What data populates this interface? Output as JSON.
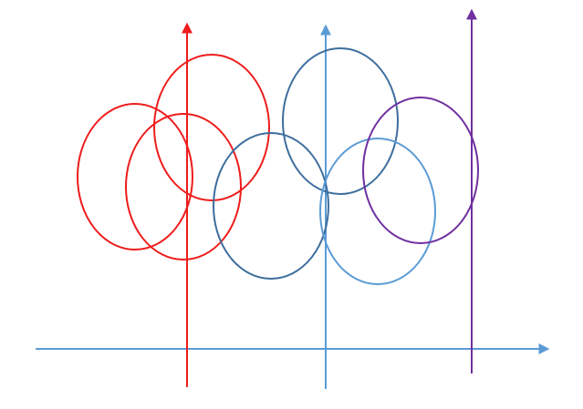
{
  "colors": {
    "red": "#ee1c1c",
    "dark_blue": "#3d6e9d",
    "light_blue": "#5b9bd5",
    "purple": "#7030a0",
    "background": "#ffffff"
  },
  "elements": {
    "horizontal_axis": {
      "color": "#5b9bd5",
      "arrow": "right"
    },
    "vertical_lines": [
      {
        "name": "red-vertical-line",
        "color": "#ee1c1c",
        "arrow": "up"
      },
      {
        "name": "blue-vertical-line",
        "color": "#5b9bd5",
        "arrow": "up"
      },
      {
        "name": "purple-vertical-line",
        "color": "#7030a0",
        "arrow": "up"
      }
    ],
    "ellipses": [
      {
        "name": "red-ellipse-left",
        "color": "#ee1c1c"
      },
      {
        "name": "red-ellipse-top",
        "color": "#ee1c1c"
      },
      {
        "name": "red-ellipse-bottom",
        "color": "#ee1c1c"
      },
      {
        "name": "dark-blue-ellipse-bottom",
        "color": "#3d6e9d"
      },
      {
        "name": "dark-blue-ellipse-top",
        "color": "#3d6e9d"
      },
      {
        "name": "light-blue-ellipse",
        "color": "#5b9bd5"
      },
      {
        "name": "purple-ellipse",
        "color": "#7030a0"
      }
    ]
  }
}
